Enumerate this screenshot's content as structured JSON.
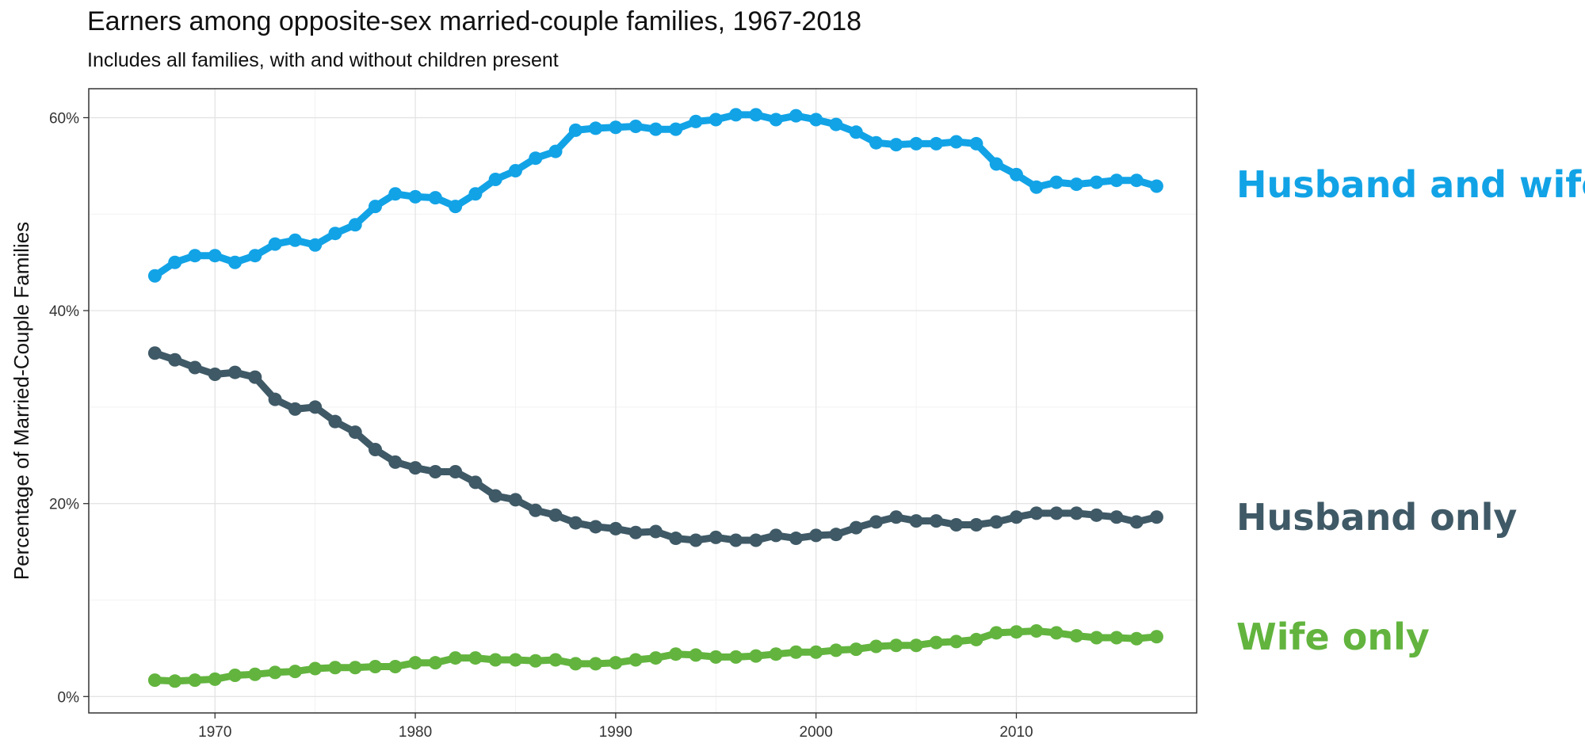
{
  "chart_data": {
    "type": "line",
    "title": "Earners among opposite-sex married-couple families, 1967-2018",
    "subtitle": "Includes all families, with and without children present",
    "xlabel": "",
    "ylabel": "Percentage of Married-Couple Families",
    "xlim": [
      1963.7,
      2019.0
    ],
    "ylim": [
      -1.7,
      63.0
    ],
    "x_ticks": [
      1970,
      1980,
      1990,
      2000,
      2010
    ],
    "y_ticks": [
      0,
      20,
      40,
      60
    ],
    "y_tick_labels": [
      "0%",
      "20%",
      "40%",
      "60%"
    ],
    "grid": true,
    "legend": "direct labels at right",
    "x": [
      1967,
      1968,
      1969,
      1970,
      1971,
      1972,
      1973,
      1974,
      1975,
      1976,
      1977,
      1978,
      1979,
      1980,
      1981,
      1982,
      1983,
      1984,
      1985,
      1986,
      1987,
      1988,
      1989,
      1990,
      1991,
      1992,
      1993,
      1994,
      1995,
      1996,
      1997,
      1998,
      1999,
      2000,
      2001,
      2002,
      2003,
      2004,
      2005,
      2006,
      2007,
      2008,
      2009,
      2010,
      2011,
      2012,
      2013,
      2014,
      2015,
      2016,
      2017
    ],
    "series": [
      {
        "name": "Husband and wife",
        "color": "#12a3e6",
        "values": [
          43.6,
          45.0,
          45.7,
          45.7,
          45.0,
          45.7,
          46.9,
          47.3,
          46.8,
          48.0,
          48.9,
          50.8,
          52.1,
          51.8,
          51.7,
          50.8,
          52.1,
          53.6,
          54.5,
          55.8,
          56.5,
          58.7,
          58.9,
          59.0,
          59.1,
          58.8,
          58.8,
          59.6,
          59.8,
          60.3,
          60.3,
          59.8,
          60.2,
          59.8,
          59.3,
          58.5,
          57.4,
          57.2,
          57.3,
          57.3,
          57.5,
          57.3,
          55.2,
          54.1,
          52.8,
          53.3,
          53.1,
          53.3,
          53.5,
          53.5,
          52.9
        ]
      },
      {
        "name": "Husband only",
        "color": "#3f5966",
        "values": [
          35.6,
          34.9,
          34.1,
          33.4,
          33.6,
          33.1,
          30.8,
          29.8,
          30.0,
          28.5,
          27.4,
          25.6,
          24.3,
          23.7,
          23.3,
          23.3,
          22.2,
          20.8,
          20.4,
          19.3,
          18.8,
          18.0,
          17.6,
          17.4,
          17.0,
          17.1,
          16.4,
          16.2,
          16.5,
          16.2,
          16.2,
          16.7,
          16.4,
          16.7,
          16.8,
          17.5,
          18.1,
          18.6,
          18.2,
          18.2,
          17.8,
          17.8,
          18.1,
          18.6,
          19.0,
          19.0,
          19.0,
          18.8,
          18.6,
          18.1,
          18.6
        ]
      },
      {
        "name": "Wife only",
        "color": "#62b43e",
        "values": [
          1.7,
          1.6,
          1.7,
          1.8,
          2.2,
          2.3,
          2.5,
          2.6,
          2.9,
          3.0,
          3.0,
          3.1,
          3.1,
          3.5,
          3.5,
          4.0,
          4.0,
          3.8,
          3.8,
          3.7,
          3.8,
          3.4,
          3.4,
          3.5,
          3.8,
          4.0,
          4.4,
          4.3,
          4.1,
          4.1,
          4.2,
          4.4,
          4.6,
          4.6,
          4.8,
          4.9,
          5.2,
          5.3,
          5.3,
          5.6,
          5.7,
          5.9,
          6.6,
          6.7,
          6.8,
          6.6,
          6.3,
          6.1,
          6.1,
          6.0,
          6.2
        ]
      }
    ]
  }
}
